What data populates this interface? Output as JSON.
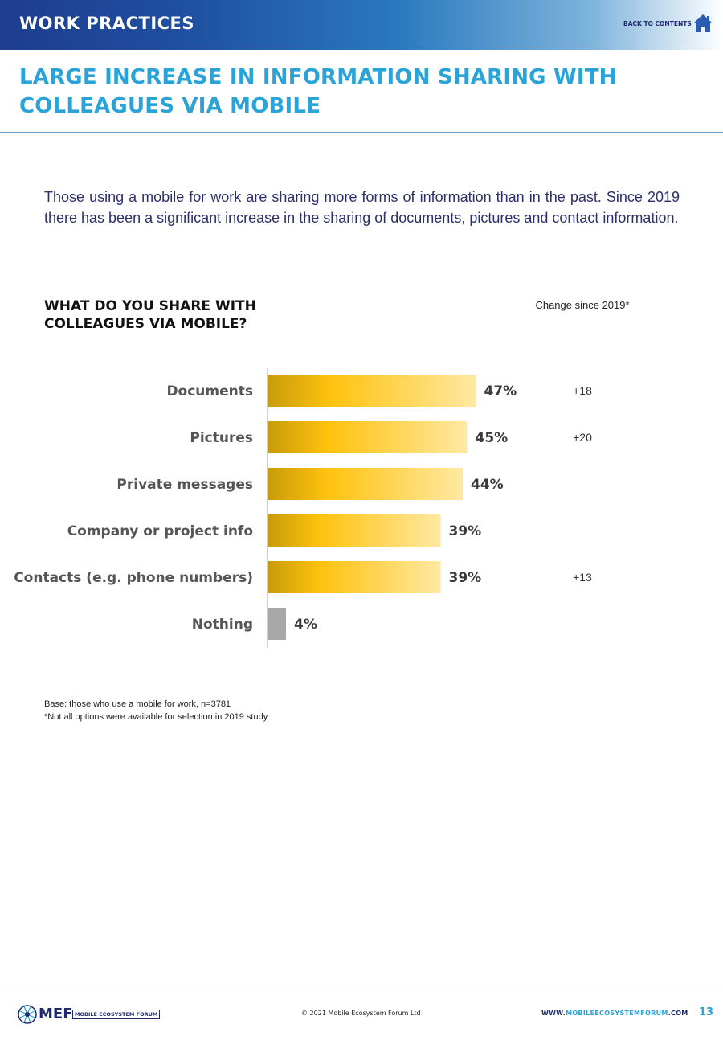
{
  "header": {
    "section": "WORK PRACTICES",
    "back_link": "BACK TO CONTENTS",
    "home_icon": "home-icon"
  },
  "headline": "LARGE INCREASE IN INFORMATION SHARING WITH COLLEAGUES VIA MOBILE",
  "intro": "Those using a mobile for work are sharing more forms of information than in the past. Since 2019 there has been a significant increase in the sharing of documents, pictures and contact information.",
  "chart_data": {
    "type": "bar",
    "orientation": "horizontal",
    "title": "WHAT DO YOU SHARE WITH COLLEAGUES VIA MOBILE?",
    "change_header": "Change since 2019*",
    "categories": [
      "Documents",
      "Pictures",
      "Private messages",
      "Company or project info",
      "Contacts (e.g. phone numbers)",
      "Nothing"
    ],
    "values": [
      47,
      45,
      44,
      39,
      39,
      4
    ],
    "value_labels": [
      "47%",
      "45%",
      "44%",
      "39%",
      "39%",
      "4%"
    ],
    "change_since_2019": [
      "+18",
      "+20",
      "",
      "",
      "+13",
      ""
    ],
    "xlim": [
      0,
      100
    ],
    "unit": "%",
    "colors": {
      "bar_gradient": [
        "#c89c0a",
        "#ffc20e",
        "#ffe9a3"
      ],
      "nothing_bar": "#a8a8a8"
    }
  },
  "notes": {
    "base": "Base: those who use a mobile for work, n=3781",
    "footnote": "*Not all options were available for selection in 2019 study"
  },
  "footer": {
    "logo_text": "MEF",
    "logo_sub": "MOBILE ECOSYSTEM FORUM",
    "copyright": "© 2021 Mobile Ecosystem Forum Ltd",
    "url_prefix": "WWW.",
    "url_highlight": "MOBILEECOSYSTEMFORUM",
    "url_suffix": ".COM",
    "page_number": "13"
  },
  "colors": {
    "headline": "#2aa3d8",
    "navy": "#1f2a6e",
    "body_text": "#2d2f6b"
  }
}
